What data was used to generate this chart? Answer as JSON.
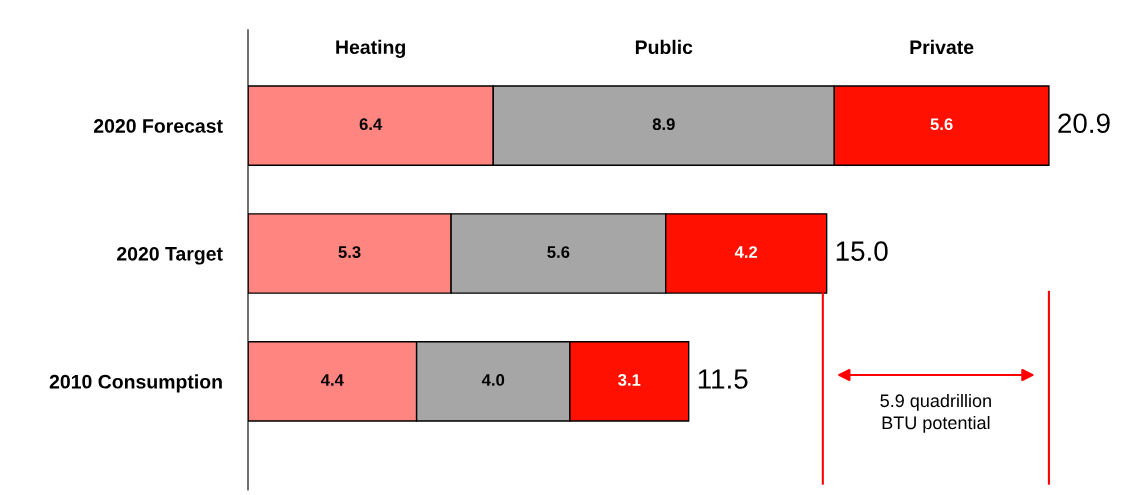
{
  "chart_data": {
    "type": "bar",
    "orientation": "horizontal",
    "stacked": true,
    "legend": "top",
    "grid": false,
    "categories": [
      "2020 Forecast",
      "2020 Target",
      "2010 Consumption"
    ],
    "series": [
      {
        "name": "Heating",
        "color": "#ff8680",
        "values": [
          6.4,
          5.3,
          4.4
        ],
        "value_labels": [
          "6.4",
          "5.3",
          "4.4"
        ]
      },
      {
        "name": "Public",
        "color": "#a6a6a6",
        "values": [
          8.9,
          5.6,
          4.0
        ],
        "value_labels": [
          "8.9",
          "5.6",
          "4.0"
        ]
      },
      {
        "name": "Private",
        "color": "#ff1000",
        "values": [
          5.6,
          4.2,
          3.1
        ],
        "value_labels": [
          "5.6",
          "4.2",
          "3.1"
        ]
      }
    ],
    "totals": [
      "20.9",
      "15.0",
      "11.5"
    ],
    "ref_lines": [
      {
        "axis": "x",
        "value": 15.0,
        "color": "#ff0000"
      },
      {
        "axis": "x",
        "value": 20.9,
        "color": "#ff0000"
      }
    ],
    "annotations": [
      "5.9 quadrillion\nBTU potential"
    ]
  }
}
